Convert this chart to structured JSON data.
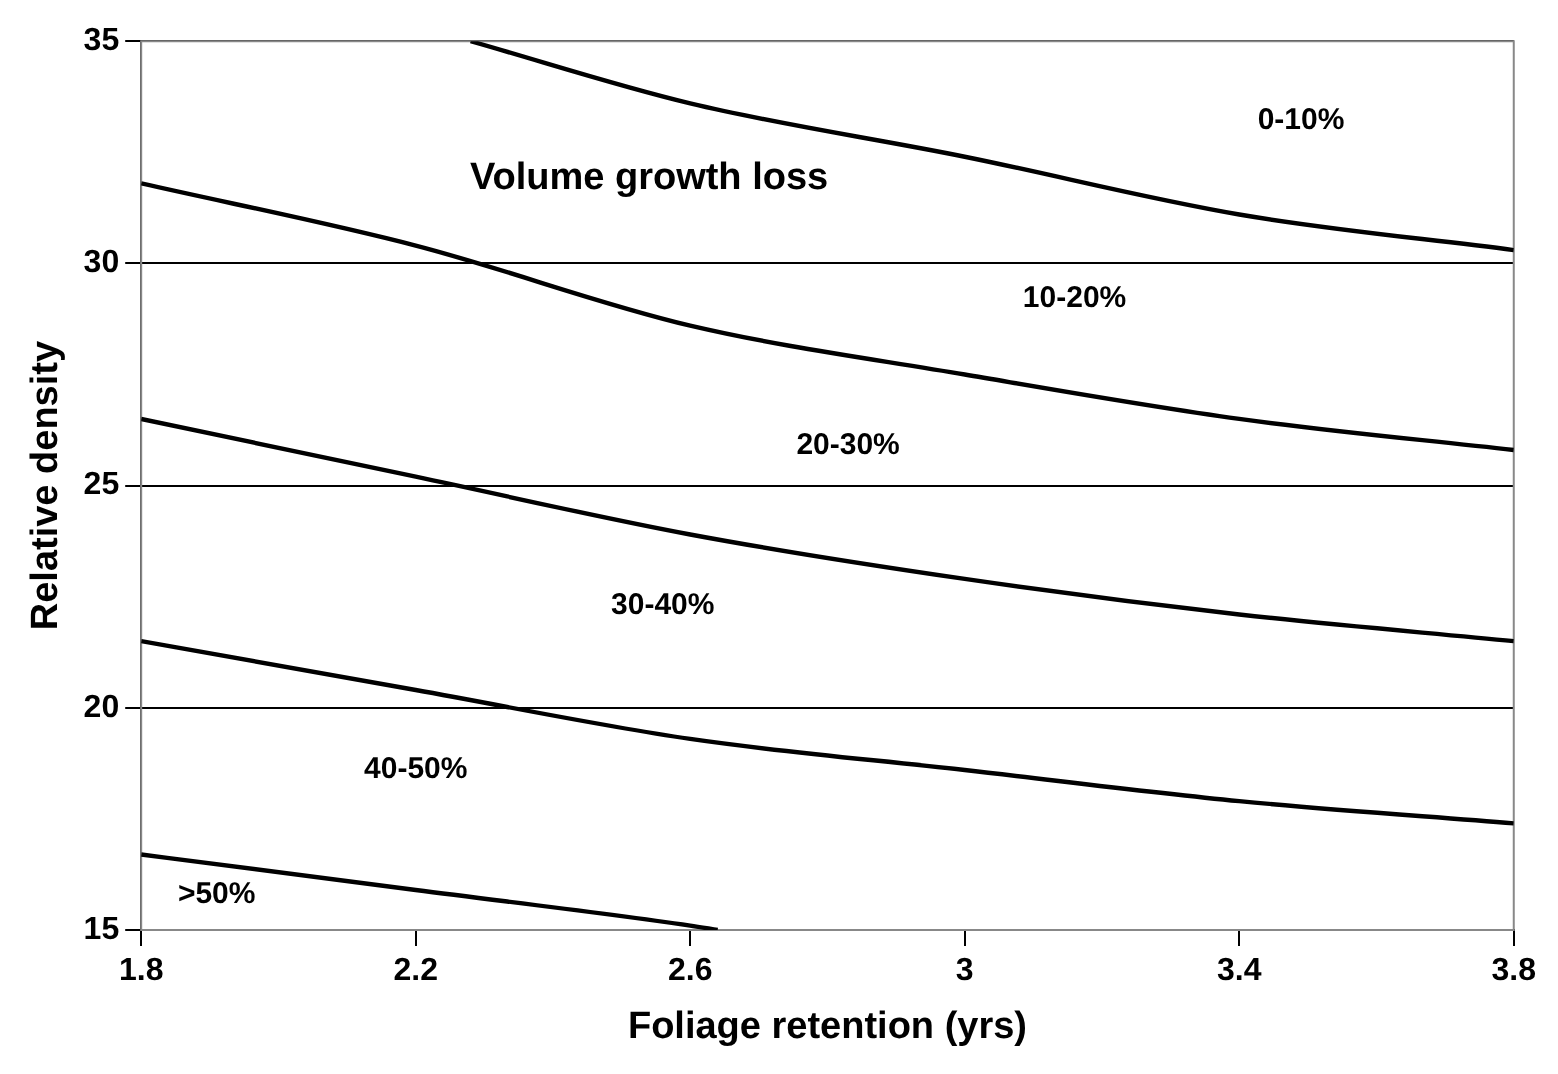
{
  "chart_data": {
    "type": "line",
    "xlabel": "Foliage retention (yrs)",
    "ylabel": "Relative density",
    "series": [
      {
        "color": "#000000",
        "x": [
          2.28,
          2.6,
          3.0,
          3.4,
          3.8
        ],
        "values": [
          35,
          33.6,
          32.4,
          31.1,
          30.3
        ]
      },
      {
        "color": "#000000",
        "x": [
          1.8,
          2.2,
          2.6,
          3.0,
          3.4,
          3.8
        ],
        "values": [
          31.8,
          30.4,
          28.6,
          27.5,
          26.5,
          25.8
        ]
      },
      {
        "color": "#000000",
        "x": [
          1.8,
          2.2,
          2.6,
          3.0,
          3.4,
          3.8
        ],
        "values": [
          26.5,
          25.2,
          23.9,
          22.9,
          22.1,
          21.5
        ]
      },
      {
        "color": "#000000",
        "x": [
          1.8,
          2.2,
          2.6,
          3.0,
          3.4,
          3.8
        ],
        "values": [
          21.5,
          20.4,
          19.3,
          18.6,
          17.9,
          17.4
        ]
      },
      {
        "color": "#000000",
        "x": [
          1.8,
          2.2,
          2.6,
          2.64
        ],
        "values": [
          16.7,
          15.9,
          15.1,
          15
        ]
      }
    ],
    "xlim": [
      1.8,
      3.8
    ],
    "xticks": [
      1.8,
      2.2,
      2.6,
      3,
      3.4,
      3.8
    ],
    "ylim": [
      15,
      35
    ],
    "yticks": [
      15,
      20,
      25,
      30,
      35
    ],
    "grid": "y",
    "legend": false,
    "marker": "none",
    "line_style": "solid",
    "annotations": [
      "Volume growth loss",
      "0-10%",
      "10-20%",
      "20-30%",
      "30-40%",
      "40-50%",
      ">50%"
    ]
  }
}
